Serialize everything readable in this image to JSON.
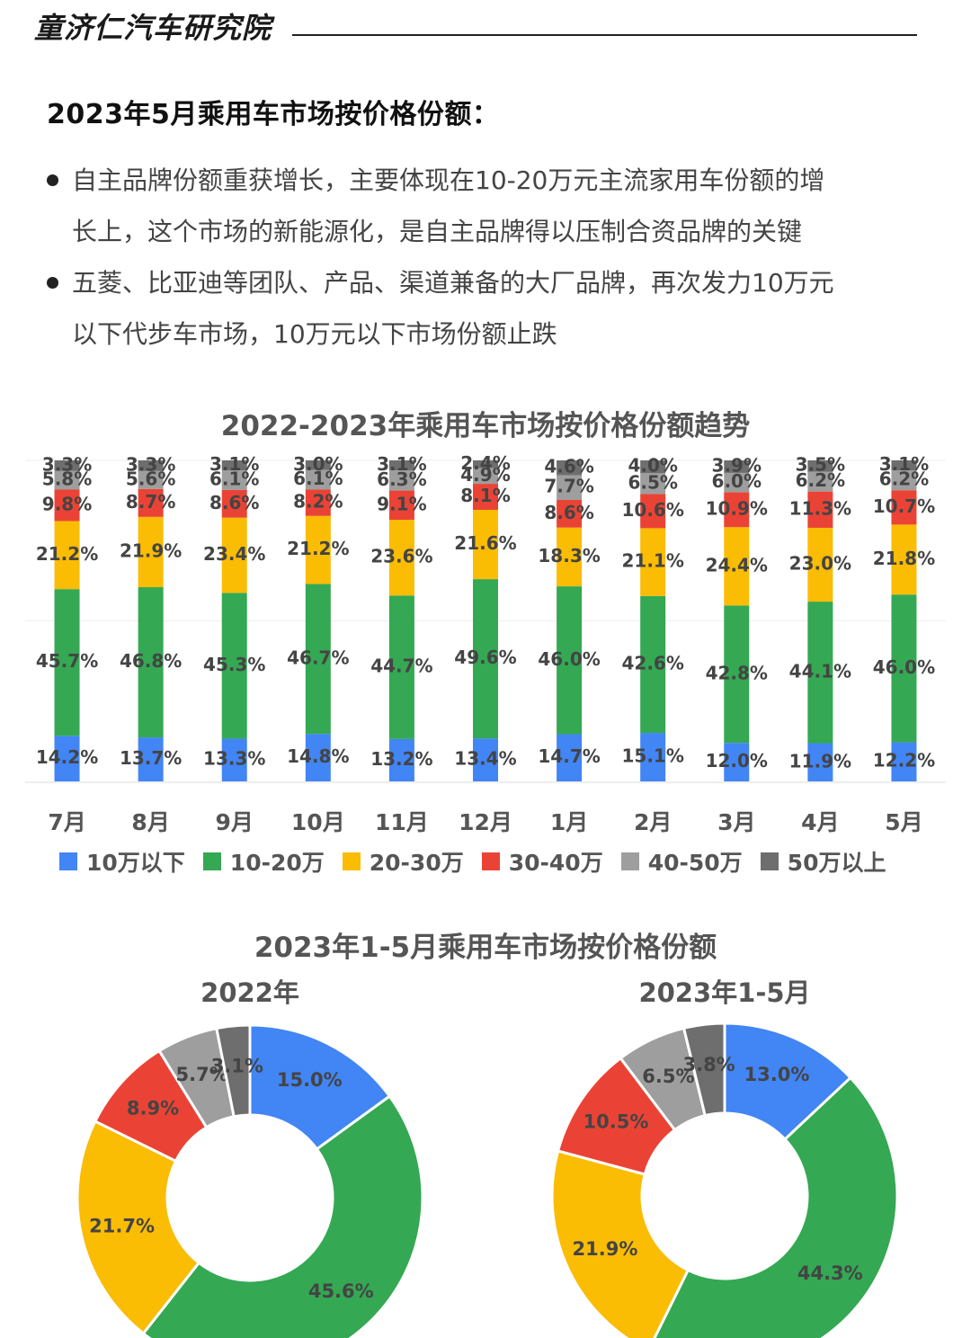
{
  "brand": "童济仁汽车研究院",
  "heading": "2023年5月乘用车市场按价格份额：",
  "bullets": [
    {
      "line1": "自主品牌份额重获增长，主要体现在10-20万元主流家用车份额的增",
      "line2": "长上，这个市场的新能源化，是自主品牌得以压制合资品牌的关键"
    },
    {
      "line1": "五菱、比亚迪等团队、产品、渠道兼备的大厂品牌，再次发力10万元",
      "line2": "以下代步车市场，10万元以下市场份额止跌"
    }
  ],
  "colors": {
    "10万以下": "#4285F4",
    "10-20万": "#34A853",
    "20-30万": "#FBBC04",
    "30-40万": "#EA4335",
    "40-50万": "#9E9E9E",
    "50万以上": "#6E6E6E"
  },
  "chart_data": [
    {
      "type": "bar",
      "stacked": true,
      "title": "2022-2023年乘用车市场按价格份额趋势",
      "categories": [
        "7月",
        "8月",
        "9月",
        "10月",
        "11月",
        "12月",
        "1月",
        "2月",
        "3月",
        "4月",
        "5月"
      ],
      "unit": "%",
      "legend_position": "bottom",
      "series": [
        {
          "name": "10万以下",
          "values": [
            14.2,
            13.7,
            13.3,
            14.8,
            13.2,
            13.4,
            14.7,
            15.1,
            12.0,
            11.9,
            12.2
          ]
        },
        {
          "name": "10-20万",
          "values": [
            45.7,
            46.8,
            45.3,
            46.7,
            44.7,
            49.6,
            46.0,
            42.6,
            42.8,
            44.1,
            46.0
          ]
        },
        {
          "name": "20-30万",
          "values": [
            21.2,
            21.9,
            23.4,
            21.2,
            23.6,
            21.6,
            18.3,
            21.1,
            24.4,
            23.0,
            21.8
          ]
        },
        {
          "name": "30-40万",
          "values": [
            9.8,
            8.7,
            8.6,
            8.2,
            9.1,
            8.1,
            8.6,
            10.6,
            10.9,
            11.3,
            10.7
          ]
        },
        {
          "name": "40-50万",
          "values": [
            5.8,
            5.6,
            6.1,
            6.1,
            6.3,
            4.9,
            7.7,
            6.5,
            6.0,
            6.2,
            6.2
          ]
        },
        {
          "name": "50万以上",
          "values": [
            3.3,
            3.3,
            3.1,
            3.0,
            3.1,
            2.4,
            4.6,
            4.0,
            3.9,
            3.5,
            3.1
          ]
        }
      ]
    },
    {
      "type": "pie",
      "donut": true,
      "title": "2022年",
      "labels": [
        "10万以下",
        "10-20万",
        "20-30万",
        "30-40万",
        "40-50万",
        "50万以上"
      ],
      "values": [
        15.0,
        45.6,
        21.7,
        8.9,
        5.7,
        3.1
      ],
      "unit": "%"
    },
    {
      "type": "pie",
      "donut": true,
      "title": "2023年1-5月",
      "labels": [
        "10万以下",
        "10-20万",
        "20-30万",
        "30-40万",
        "40-50万",
        "50万以上"
      ],
      "values": [
        13.0,
        44.3,
        21.9,
        10.5,
        6.5,
        3.8
      ],
      "unit": "%"
    }
  ],
  "donut_section_title": "2023年1-5月乘用车市场按价格份额"
}
